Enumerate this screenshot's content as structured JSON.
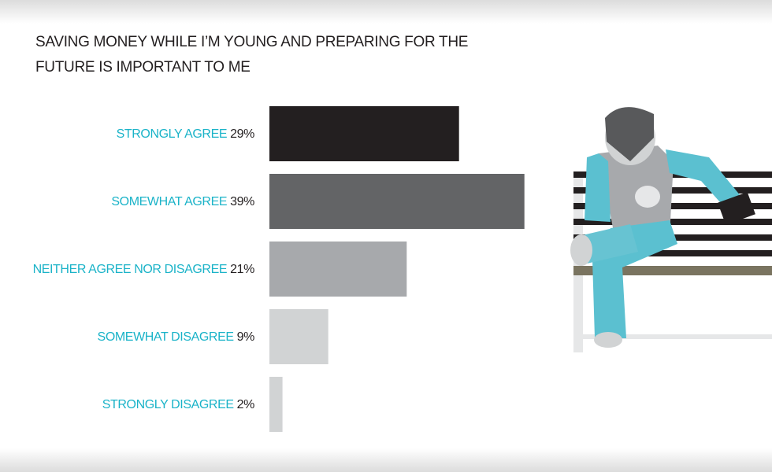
{
  "chart_data": {
    "type": "bar",
    "orientation": "horizontal",
    "title": "SAVING MONEY WHILE I’M YOUNG AND PREPARING FOR THE FUTURE IS IMPORTANT TO ME",
    "categories": [
      "STRONGLY AGREE",
      "SOMEWHAT AGREE",
      "NEITHER AGREE NOR DISAGREE",
      "SOMEWHAT DISAGREE",
      "STRONGLY DISAGREE"
    ],
    "values": [
      29,
      39,
      21,
      9,
      2
    ],
    "value_labels": [
      "29%",
      "39%",
      "21%",
      "9%",
      "2%"
    ],
    "colors": [
      "#231f20",
      "#636466",
      "#a7a9ac",
      "#d1d3d4",
      "#d1d3d4"
    ],
    "category_color": "#1ab3c8"
  }
}
